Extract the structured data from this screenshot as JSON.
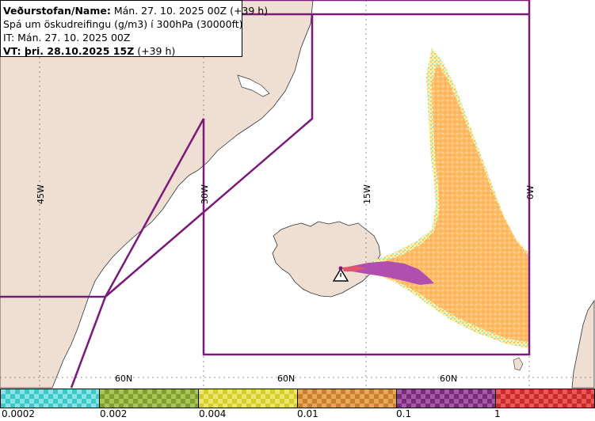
{
  "header": {
    "line1_bold": "Veðurstofan/Name:",
    "line1_rest": " Mán. 27. 10. 2025 00Z (+39 h)",
    "line2": "Spá um öskudreifingu (g/m3) í 300hPa (30000ft)",
    "line3": "IT: Mán. 27. 10. 2025 00Z",
    "line4_bold": "VT: þri. 28.10.2025 15Z",
    "line4_rest": " (+39 h)"
  },
  "map": {
    "longitude_labels": [
      "45W",
      "30W",
      "15W",
      "0W"
    ],
    "latitude_labels": [
      "60N",
      "60N",
      "60N"
    ],
    "colors": {
      "land": "#efdfd3",
      "sea": "#ffffff",
      "boundary": "#7a1a7a",
      "ash_orange": "#ffbd6a",
      "ash_purple": "#b04fb0",
      "ash_yellow": "#fff2a0",
      "ash_cyan": "#8fe6e6"
    },
    "volcano_icon": "warning-triangle-icon"
  },
  "colorbar": {
    "segments": [
      {
        "color": "#3ac8c8",
        "alt": "#88e3e3"
      },
      {
        "color": "#7fa12a",
        "alt": "#a9c45a"
      },
      {
        "color": "#d4cc2a",
        "alt": "#ece76a"
      },
      {
        "color": "#cc7f2a",
        "alt": "#e6a95a"
      },
      {
        "color": "#7a2a7a",
        "alt": "#a45aa4"
      },
      {
        "color": "#cc2a2a",
        "alt": "#e65a5a"
      }
    ],
    "tick_labels": [
      "0.0002",
      "0.002",
      "0.004",
      "0.01",
      "0.1",
      "1"
    ]
  }
}
